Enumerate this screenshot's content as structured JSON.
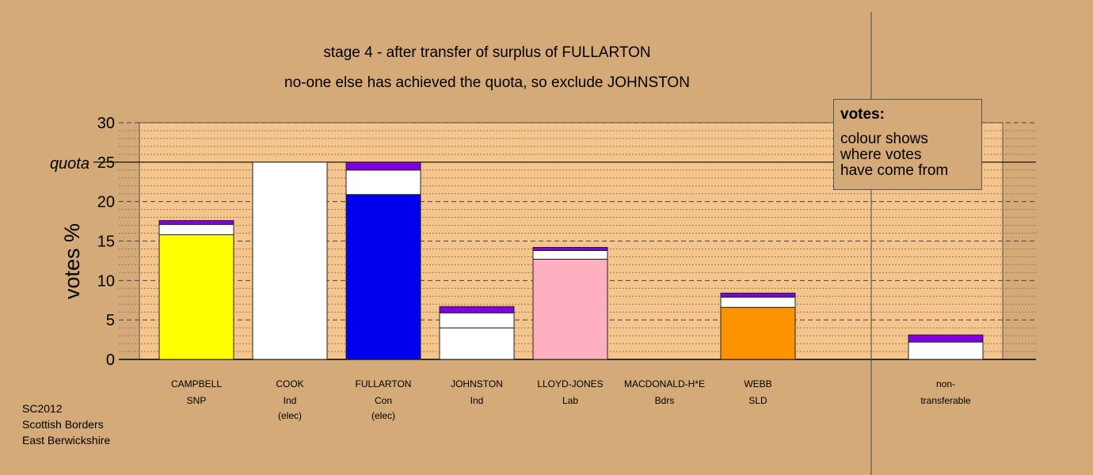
{
  "title_line1": "stage 4 - after transfer of surplus of FULLARTON",
  "title_line2": "no-one else has achieved the quota, so exclude JOHNSTON",
  "legend": {
    "title": "votes:",
    "lines": [
      "colour shows",
      "where votes",
      "have come from"
    ]
  },
  "footer": [
    "SC2012",
    "Scottish Borders",
    "East Berwickshire"
  ],
  "colors": {
    "background": "#d4aa78",
    "plot_area": "#f5c58e",
    "transfer_white": "#ffffff",
    "transfer_purple": "#8000e0"
  },
  "chart_data": {
    "type": "bar",
    "stacked": true,
    "ylabel": "votes %",
    "ylim": [
      0,
      30
    ],
    "yticks": [
      0,
      5,
      10,
      15,
      20,
      25,
      30
    ],
    "quota": 25,
    "quota_label": "quota",
    "grid": true,
    "legend_placement": "top-right",
    "candidates": [
      {
        "name": "CAMPBELL",
        "party": "SNP",
        "status": "",
        "color": "#ffff00",
        "segments": [
          15.8,
          1.3,
          0.5
        ]
      },
      {
        "name": "COOK",
        "party": "Ind",
        "status": "(elec)",
        "color": "#ffffff",
        "segments": [
          25.0,
          0,
          0
        ]
      },
      {
        "name": "FULLARTON",
        "party": "Con",
        "status": "(elec)",
        "color": "#0000ee",
        "segments": [
          20.9,
          3.1,
          1.0
        ]
      },
      {
        "name": "JOHNSTON",
        "party": "Ind",
        "status": "",
        "color": "#ffffff",
        "segments": [
          4.0,
          1.9,
          0.8
        ]
      },
      {
        "name": "LLOYD-JONES",
        "party": "Lab",
        "status": "",
        "color": "#ffb0c0",
        "segments": [
          12.7,
          1.1,
          0.4
        ]
      },
      {
        "name": "MACDONALD-H*E",
        "party": "Bdrs",
        "status": "",
        "color": "#ffffff",
        "segments": [
          0,
          0,
          0
        ]
      },
      {
        "name": "WEBB",
        "party": "SLD",
        "status": "",
        "color": "#ff9400",
        "segments": [
          6.6,
          1.3,
          0.5
        ]
      }
    ],
    "nontransferable": {
      "line1": "non-",
      "line2": "transferable",
      "segments": [
        2.2,
        0.9
      ]
    }
  }
}
